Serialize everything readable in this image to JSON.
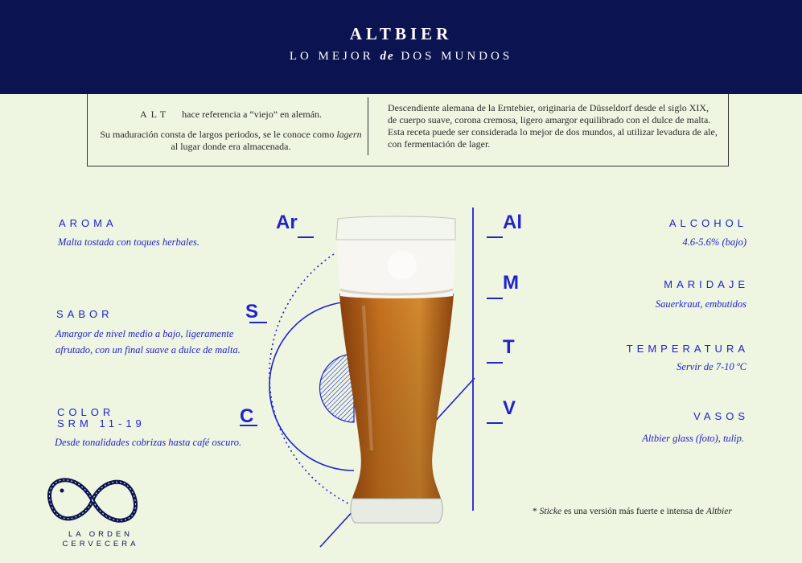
{
  "header": {
    "title": "ALTBIER",
    "subtitle_pre": "LO MEJOR",
    "subtitle_em": "de",
    "subtitle_post": "DOS MUNDOS"
  },
  "intro": {
    "alt_word": "ALT",
    "alt_text": "hace referencia a “viejo” en alemán.",
    "maturation_pre": "Su maduración consta de largos periodos, se le conoce como",
    "maturation_em": "lagern",
    "maturation_post": "al lugar donde era almacenada.",
    "description": "Descendiente alemana de la Erntebier, originaria de Düsseldorf desde el siglo XIX, de cuerpo suave, corona cremosa, ligero amargor equilibrado con el dulce de malta.  Esta receta puede ser considerada lo mejor de dos mundos, al utilizar levadura de ale, con fermentación de lager."
  },
  "left": {
    "aroma": {
      "letter": "Ar",
      "label": "AROMA",
      "desc": "Malta tostada con toques herbales."
    },
    "sabor": {
      "letter": "S",
      "label": "SABOR",
      "desc1": "Amargor de nivel medio a bajo, ligeramente",
      "desc2": "afrutado, con un final suave a dulce de malta."
    },
    "color": {
      "letter": "C",
      "label": "COLOR",
      "srm": "SRM 11-19",
      "desc": "Desde tonalidades cobrizas hasta café oscuro."
    }
  },
  "right": {
    "alcohol": {
      "letter": "Al",
      "label": "ALCOHOL",
      "desc": "4.6-5.6% (bajo)"
    },
    "maridaje": {
      "letter": "M",
      "label": "MARIDAJE",
      "desc": "Sauerkraut, embutidos"
    },
    "temperatura": {
      "letter": "T",
      "label": "TEMPERATURA",
      "desc": "Servir de 7-10 ºC"
    },
    "vasos": {
      "letter": "V",
      "label": "VASOS",
      "desc": "Altbier glass (foto), tulip."
    }
  },
  "footnote": {
    "star": "*",
    "sticke": "Sticke",
    "text": "es una versión más fuerte e intensa de",
    "altbier": "Altbier"
  },
  "logo": {
    "line1": "LA ORDEN",
    "line2": "CERVECERA"
  },
  "colors": {
    "navy": "#0b1450",
    "accent_blue": "#2222cc",
    "background": "#eef5e0",
    "beer": "#c06c1c"
  }
}
